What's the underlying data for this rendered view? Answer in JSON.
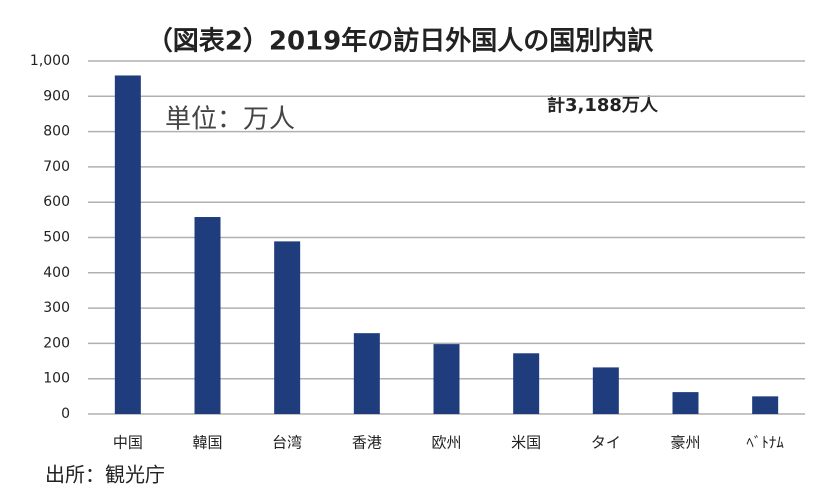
{
  "chart_data": {
    "type": "bar",
    "title": "（図表2）2019年の訪日外国人の国別内訳",
    "unit_note": "単位：万人",
    "total_note": "計3,188万人",
    "source": "出所：観光庁",
    "categories": [
      "中国",
      "韓国",
      "台湾",
      "香港",
      "欧州",
      "米国",
      "タイ",
      "豪州",
      "ﾍﾞﾄﾅﾑ"
    ],
    "values": [
      959,
      558,
      489,
      229,
      198,
      172,
      132,
      62,
      50
    ],
    "color": "#1f3c7c",
    "ylim": [
      0,
      1000
    ],
    "yticks": [
      0,
      100,
      200,
      300,
      400,
      500,
      600,
      700,
      800,
      900,
      {
        "value": 1000,
        "label": "1,000"
      }
    ],
    "grid": true
  }
}
